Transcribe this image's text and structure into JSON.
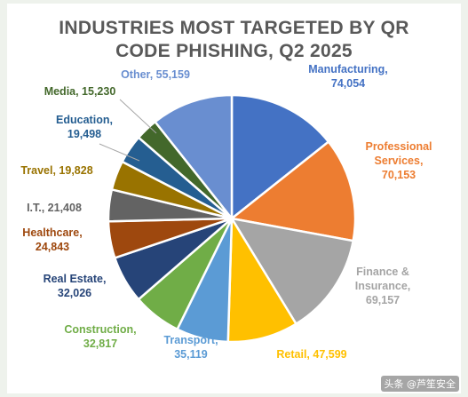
{
  "chart_data": {
    "type": "pie",
    "title_lines": [
      "INDUSTRIES MOST TARGETED BY QR",
      "CODE PHISHING, Q2 2025"
    ],
    "slices": [
      {
        "label_lines": [
          "Manufacturing,",
          "74,054"
        ],
        "value": 74054,
        "color": "#4472c4"
      },
      {
        "label_lines": [
          "Professional",
          "Services,",
          "70,153"
        ],
        "value": 70153,
        "color": "#ed7d31"
      },
      {
        "label_lines": [
          "Finance &",
          "Insurance,",
          "69,157"
        ],
        "value": 69157,
        "color": "#a5a5a5"
      },
      {
        "label_lines": [
          "Retail, 47,599"
        ],
        "value": 47599,
        "color": "#ffc000"
      },
      {
        "label_lines": [
          "Transport,",
          "35,119"
        ],
        "value": 35119,
        "color": "#5b9bd5"
      },
      {
        "label_lines": [
          "Construction,",
          "32,817"
        ],
        "value": 32817,
        "color": "#70ad47"
      },
      {
        "label_lines": [
          "Real Estate,",
          "32,026"
        ],
        "value": 32026,
        "color": "#264478"
      },
      {
        "label_lines": [
          "Healthcare,",
          "24,843"
        ],
        "value": 24843,
        "color": "#9e480e"
      },
      {
        "label_lines": [
          "I.T., 21,408"
        ],
        "value": 21408,
        "color": "#636363"
      },
      {
        "label_lines": [
          "Travel, 19,828"
        ],
        "value": 19828,
        "color": "#997300"
      },
      {
        "label_lines": [
          "Education,",
          "19,498"
        ],
        "value": 19498,
        "color": "#255e91"
      },
      {
        "label_lines": [
          "Media, 15,230"
        ],
        "value": 15230,
        "color": "#43682b"
      },
      {
        "label_lines": [
          "Other, 55,159"
        ],
        "value": 55159,
        "color": "#698ed0"
      }
    ]
  },
  "watermark": "头条 @芦笙安全"
}
